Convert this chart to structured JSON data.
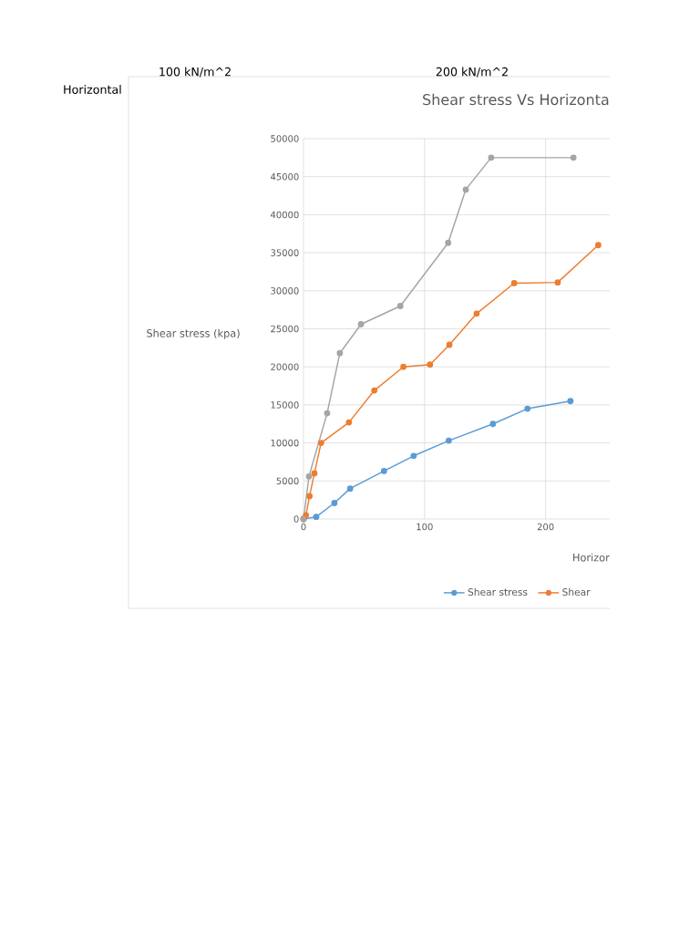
{
  "chart_data": {
    "type": "line",
    "title": "Shear stress Vs Horizonta",
    "xlabel": "Horizor",
    "ylabel": "Shear stress (kpa)",
    "annotations": [
      "100 kN/m^2",
      "200 kN/m^2",
      "Horizontal"
    ],
    "xlim": [
      0,
      253
    ],
    "xticks": [
      0,
      100,
      200
    ],
    "ylim": [
      0,
      50000
    ],
    "yticks": [
      0,
      5000,
      10000,
      15000,
      20000,
      25000,
      30000,
      35000,
      40000,
      45000,
      50000
    ],
    "grid": true,
    "legend": "bottom",
    "marker": "circle",
    "series": [
      {
        "name": "Shear stress",
        "color": "#5b9bd5",
        "x": [
          0,
          10.5,
          25.5,
          38.5,
          66.5,
          91,
          120,
          156.5,
          185,
          220.5
        ],
        "values": [
          0,
          280,
          2100,
          4000,
          6300,
          8300,
          10300,
          12500,
          14500,
          15500
        ]
      },
      {
        "name": "Shear",
        "color": "#ed7d31",
        "x": [
          0,
          2,
          5,
          9,
          14.5,
          37.5,
          58.5,
          82.5,
          104.5,
          120.5,
          143,
          174,
          210,
          243.5
        ],
        "values": [
          0,
          500,
          3000,
          6000,
          10000,
          12700,
          16900,
          20000,
          20300,
          22900,
          27000,
          31000,
          31100,
          36000
        ]
      },
      {
        "color": "#a5a5a5",
        "x": [
          0,
          4.5,
          19.5,
          30,
          47.5,
          80,
          119.5,
          134,
          155,
          223
        ],
        "values": [
          0,
          5600,
          13900,
          21800,
          25600,
          28000,
          36300,
          43300,
          47500,
          47500
        ]
      }
    ]
  }
}
